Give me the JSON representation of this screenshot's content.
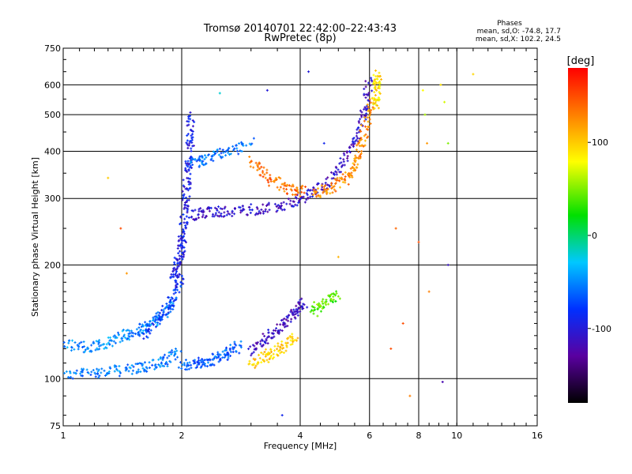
{
  "chart_data": {
    "type": "scatter",
    "title": "Tromsø 20140701 22:42:00–22:43:43",
    "subtitle": "RwPretec (8p)",
    "xlabel": "Frequency [MHz]",
    "ylabel": "Stationary phase Virtual Height [km]",
    "x_scale": "log",
    "y_scale": "log",
    "xlim": [
      1,
      16
    ],
    "ylim": [
      75,
      750
    ],
    "x_ticks": [
      1,
      2,
      4,
      6,
      8,
      10,
      16
    ],
    "x_tick_labels": [
      "1",
      "2",
      "4",
      "6",
      "8",
      "10",
      "16"
    ],
    "y_ticks": [
      75,
      100,
      200,
      300,
      400,
      500,
      600,
      750
    ],
    "y_tick_labels": [
      "75",
      "100",
      "200",
      "300",
      "400",
      "500",
      "600",
      "750"
    ],
    "grid": true,
    "phase_info": {
      "heading": "Phases",
      "line1": "mean, sd,O: -74.8, 17.7",
      "line2": "mean, sd,X: 102.2, 24.5"
    },
    "colorbar": {
      "label": "[deg]",
      "range": [
        -180,
        180
      ],
      "ticks": [
        100,
        0,
        -100
      ],
      "tick_labels": [
        "100",
        "0",
        "-100"
      ]
    },
    "traces": [
      {
        "x": [
          1.0,
          1.2,
          1.4,
          1.6,
          1.8,
          1.95
        ],
        "y": [
          102,
          104,
          105,
          107,
          110,
          118
        ],
        "phase": -55
      },
      {
        "x": [
          1.0,
          1.15,
          1.3,
          1.45,
          1.6,
          1.75,
          1.9
        ],
        "y": [
          125,
          120,
          125,
          130,
          135,
          145,
          160
        ],
        "phase": -50
      },
      {
        "x": [
          2.0,
          2.2,
          2.4,
          2.6,
          2.8
        ],
        "y": [
          108,
          110,
          112,
          116,
          122
        ],
        "phase": -65
      },
      {
        "x": [
          1.6,
          1.75,
          1.9,
          2.0
        ],
        "y": [
          130,
          145,
          160,
          185
        ],
        "phase": -78
      },
      {
        "x": [
          1.9,
          1.95,
          2.0,
          2.02,
          2.05,
          2.08,
          2.1,
          2.12
        ],
        "y": [
          180,
          200,
          220,
          250,
          300,
          350,
          420,
          500
        ],
        "phase": -95
      },
      {
        "x": [
          2.1,
          2.3,
          2.6,
          3.0,
          3.5,
          4.0,
          4.5,
          5.0,
          5.5,
          5.8,
          6.0
        ],
        "y": [
          270,
          275,
          278,
          280,
          285,
          300,
          320,
          360,
          420,
          500,
          620
        ],
        "phase": -110
      },
      {
        "x": [
          2.1,
          2.3,
          2.6,
          3.0
        ],
        "y": [
          370,
          380,
          400,
          420
        ],
        "phase": -60
      },
      {
        "x": [
          3.0,
          3.3,
          3.7,
          4.1
        ],
        "y": [
          380,
          340,
          320,
          312
        ],
        "phase": 135
      },
      {
        "x": [
          4.3,
          4.8,
          5.3,
          5.6,
          5.8,
          6.1
        ],
        "y": [
          310,
          320,
          340,
          380,
          440,
          550
        ],
        "phase": 125
      },
      {
        "x": [
          6.2,
          6.25,
          6.3
        ],
        "y": [
          520,
          580,
          640
        ],
        "phase": 90
      },
      {
        "x": [
          3.0,
          3.3,
          3.6,
          3.9
        ],
        "y": [
          110,
          115,
          120,
          130
        ],
        "phase": 100
      },
      {
        "x": [
          3.0,
          3.3,
          3.6,
          3.9,
          4.1
        ],
        "y": [
          118,
          128,
          138,
          150,
          160
        ],
        "phase": -115
      },
      {
        "x": [
          4.3,
          4.6,
          5.0
        ],
        "y": [
          150,
          160,
          165
        ],
        "phase": 40
      }
    ],
    "scattered_points": [
      {
        "x": 8.2,
        "y": 580,
        "phase": 80
      },
      {
        "x": 8.3,
        "y": 500,
        "phase": 60
      },
      {
        "x": 8.4,
        "y": 420,
        "phase": 120
      },
      {
        "x": 9.1,
        "y": 600,
        "phase": 90
      },
      {
        "x": 9.3,
        "y": 540,
        "phase": 70
      },
      {
        "x": 9.5,
        "y": 420,
        "phase": 50
      },
      {
        "x": 11.0,
        "y": 640,
        "phase": 95
      },
      {
        "x": 7.0,
        "y": 250,
        "phase": 140
      },
      {
        "x": 7.3,
        "y": 140,
        "phase": 150
      },
      {
        "x": 8.5,
        "y": 170,
        "phase": 130
      },
      {
        "x": 3.3,
        "y": 580,
        "phase": -100
      },
      {
        "x": 2.5,
        "y": 570,
        "phase": -20
      },
      {
        "x": 1.3,
        "y": 340,
        "phase": 100
      },
      {
        "x": 1.4,
        "y": 250,
        "phase": 150
      },
      {
        "x": 1.45,
        "y": 190,
        "phase": 120
      },
      {
        "x": 7.6,
        "y": 90,
        "phase": 130
      },
      {
        "x": 9.2,
        "y": 98,
        "phase": -120
      },
      {
        "x": 3.6,
        "y": 80,
        "phase": -90
      },
      {
        "x": 4.2,
        "y": 650,
        "phase": -100
      },
      {
        "x": 4.6,
        "y": 420,
        "phase": -90
      },
      {
        "x": 8.0,
        "y": 230,
        "phase": 150
      },
      {
        "x": 9.5,
        "y": 200,
        "phase": -110
      },
      {
        "x": 6.8,
        "y": 120,
        "phase": 150
      },
      {
        "x": 5.0,
        "y": 210,
        "phase": 110
      }
    ]
  }
}
